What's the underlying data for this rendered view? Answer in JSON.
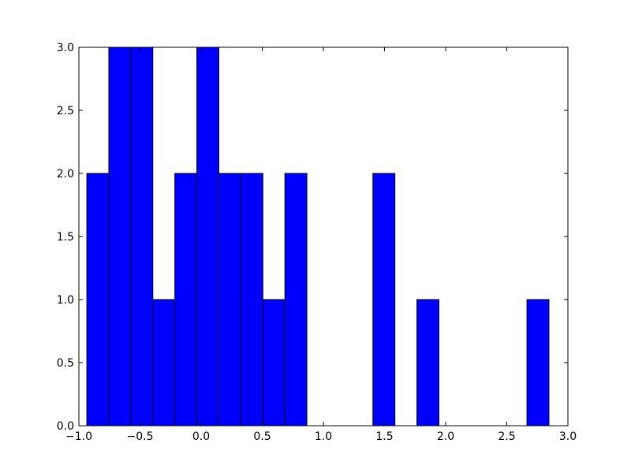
{
  "chart_data": {
    "type": "histogram",
    "bins": [
      -0.935,
      -0.755,
      -0.575,
      -0.395,
      -0.215,
      -0.035,
      0.145,
      0.325,
      0.505,
      0.685,
      0.865,
      1.045,
      1.225,
      1.405,
      1.585,
      1.765,
      1.945,
      2.125,
      2.305,
      2.485,
      2.665,
      2.845
    ],
    "values": [
      2,
      3,
      3,
      1,
      2,
      3,
      2,
      2,
      1,
      2,
      0,
      0,
      0,
      2,
      0,
      1,
      0,
      0,
      0,
      0,
      1
    ],
    "color": "#0000ff",
    "xlim": [
      -1.0,
      3.0
    ],
    "xticks": [
      {
        "value": -1.0,
        "label": "−1.0"
      },
      {
        "value": -0.5,
        "label": "−0.5"
      },
      {
        "value": 0.0,
        "label": "0.0"
      },
      {
        "value": 0.5,
        "label": "0.5"
      },
      {
        "value": 1.0,
        "label": "1.0"
      },
      {
        "value": 1.5,
        "label": "1.5"
      },
      {
        "value": 2.0,
        "label": "2.0"
      },
      {
        "value": 2.5,
        "label": "2.5"
      },
      {
        "value": 3.0,
        "label": "3.0"
      }
    ],
    "ylim": [
      0,
      3
    ],
    "yticks": [
      {
        "value": 0,
        "label": "0.0"
      },
      {
        "value": 0.5,
        "label": "0.5"
      },
      {
        "value": 1,
        "label": "1.0"
      },
      {
        "value": 1.5,
        "label": "1.5"
      },
      {
        "value": 2,
        "label": "2.0"
      },
      {
        "value": 2.5,
        "label": "2.5"
      },
      {
        "value": 3,
        "label": "3.0"
      }
    ]
  }
}
